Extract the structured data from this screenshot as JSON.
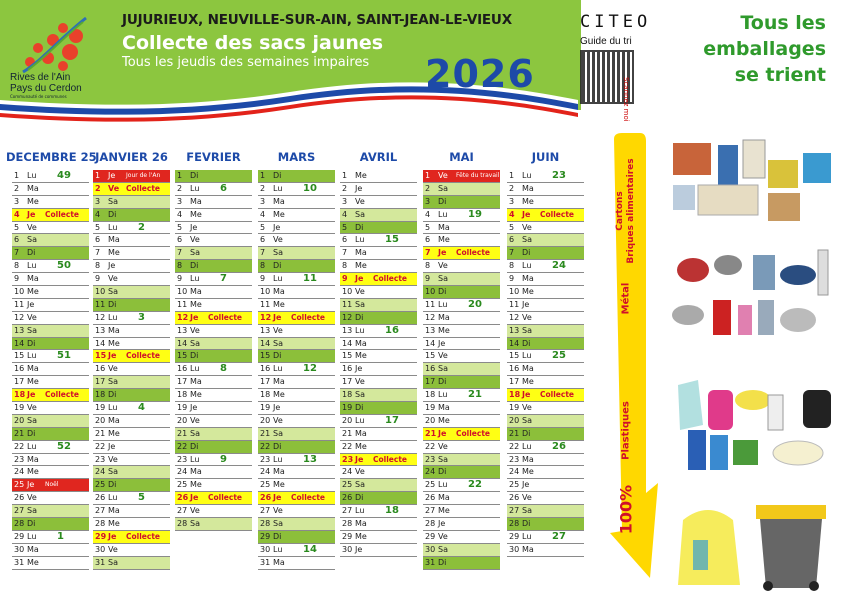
{
  "header": {
    "logo_line1": "Rives de l'Ain",
    "logo_line2": "Pays du Cerdon",
    "logo_sub": "Communauté de communes",
    "towns": "JUJURIEUX, NEUVILLE-SUR-AIN, SAINT-JEAN-LE-VIEUX",
    "title": "Collecte des sacs jaunes",
    "subtitle": "Tous les jeudis des semaines impaires",
    "year": "2026",
    "colors": {
      "banner_green": "#8cc63f",
      "year_blue": "#1d4aa8",
      "wave_red": "#e2231a",
      "wave_blue": "#1d4aa8"
    }
  },
  "citeo": {
    "brand": "CITEO",
    "guide": "Guide du tri",
    "scan": "Scannez moi",
    "slogan_lines": [
      "Tous les",
      "emballages",
      "se trient"
    ]
  },
  "weekdays": [
    "Lu",
    "Ma",
    "Me",
    "Je",
    "Ve",
    "Sa",
    "Di"
  ],
  "colors": {
    "collecte": "#ffff14",
    "holiday": "#e0261f",
    "saturday": "#d4e89c",
    "sunday": "#8cbf3a",
    "week_number": "#2a8a1e"
  },
  "months": [
    {
      "name": "DECEMBRE 25",
      "first_weekday": 0,
      "days": 31,
      "weeks": {
        "1": "49",
        "8": "50",
        "15": "51",
        "22": "52",
        "29": "1"
      },
      "events": {
        "4": {
          "label": "Collecte",
          "type": "collecte"
        },
        "18": {
          "label": "Collecte",
          "type": "collecte"
        },
        "25": {
          "label": "Noël",
          "type": "holiday"
        }
      }
    },
    {
      "name": "JANVIER 26",
      "first_weekday": 3,
      "days": 31,
      "weeks": {
        "5": "2",
        "12": "3",
        "19": "4",
        "26": "5"
      },
      "events": {
        "1": {
          "label": "Jour de l'An",
          "type": "holiday"
        },
        "2": {
          "label": "Collecte",
          "type": "collecte"
        },
        "15": {
          "label": "Collecte",
          "type": "collecte"
        },
        "29": {
          "label": "Collecte",
          "type": "collecte"
        }
      }
    },
    {
      "name": "FEVRIER",
      "first_weekday": 6,
      "days": 28,
      "weeks": {
        "2": "6",
        "9": "7",
        "16": "8",
        "23": "9"
      },
      "events": {
        "12": {
          "label": "Collecte",
          "type": "collecte"
        },
        "26": {
          "label": "Collecte",
          "type": "collecte"
        }
      }
    },
    {
      "name": "MARS",
      "first_weekday": 6,
      "days": 31,
      "weeks": {
        "2": "10",
        "9": "11",
        "16": "12",
        "23": "13",
        "30": "14"
      },
      "events": {
        "12": {
          "label": "Collecte",
          "type": "collecte"
        },
        "26": {
          "label": "Collecte",
          "type": "collecte"
        }
      }
    },
    {
      "name": "AVRIL",
      "first_weekday": 2,
      "days": 30,
      "weeks": {
        "6": "15",
        "13": "16",
        "20": "17",
        "27": "18"
      },
      "events": {
        "9": {
          "label": "Collecte",
          "type": "collecte"
        },
        "23": {
          "label": "Collecte",
          "type": "collecte"
        }
      }
    },
    {
      "name": "MAI",
      "first_weekday": 4,
      "days": 31,
      "weeks": {
        "4": "19",
        "11": "20",
        "18": "21",
        "25": "22"
      },
      "events": {
        "1": {
          "label": "Fête du travail",
          "type": "holiday"
        },
        "7": {
          "label": "Collecte",
          "type": "collecte"
        },
        "21": {
          "label": "Collecte",
          "type": "collecte"
        }
      }
    },
    {
      "name": "JUIN",
      "first_weekday": 0,
      "days": 30,
      "weeks": {
        "1": "23",
        "8": "24",
        "15": "25",
        "22": "26",
        "29": "27"
      },
      "events": {
        "4": {
          "label": "Collecte",
          "type": "collecte"
        },
        "18": {
          "label": "Collecte",
          "type": "collecte"
        }
      }
    }
  ],
  "sorting": {
    "categories": [
      {
        "label": "Cartons",
        "label2": "Briques alimentaires",
        "icon": "cartons-briques-photo"
      },
      {
        "label": "Métal",
        "icon": "metal-cans-photo"
      },
      {
        "label": "Plastiques",
        "icon": "plastic-packaging-photo"
      }
    ],
    "percent": "100%",
    "bin_icon": "yellow-bag-and-bin-photo",
    "arrow_color": "#ffd800"
  }
}
